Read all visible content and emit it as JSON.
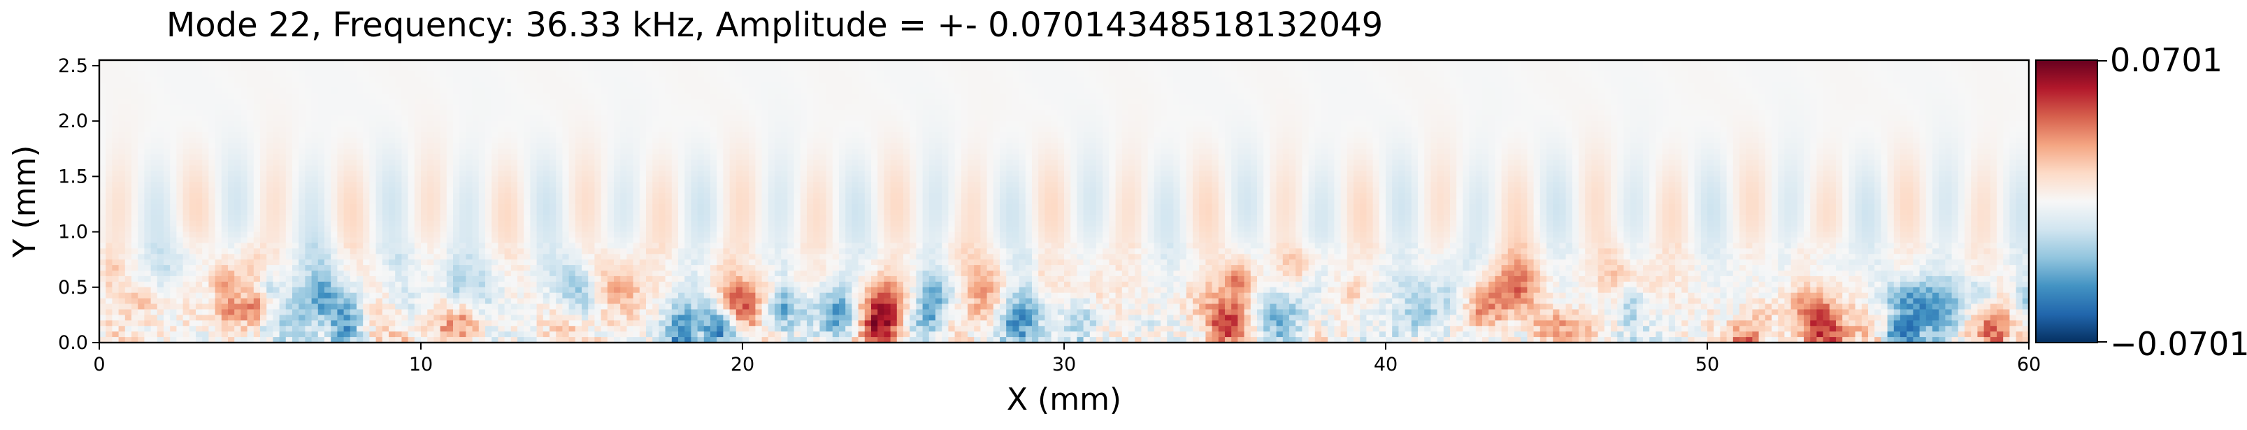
{
  "chart_data": {
    "type": "heatmap",
    "title": "Mode 22, Frequency: 36.33 kHz, Amplitude = +- 0.07014348518132049",
    "xlabel": "X (mm)",
    "ylabel": "Y (mm)",
    "xlim": [
      0,
      60
    ],
    "ylim": [
      0,
      2.55
    ],
    "x_ticks": [
      0,
      10,
      20,
      30,
      40,
      50,
      60
    ],
    "x_tick_labels": [
      "0",
      "10",
      "20",
      "30",
      "40",
      "50",
      "60"
    ],
    "y_ticks": [
      0.0,
      0.5,
      1.0,
      1.5,
      2.0,
      2.5
    ],
    "y_tick_labels": [
      "0.0",
      "0.5",
      "1.0",
      "1.5",
      "2.0",
      "2.5"
    ],
    "colormap": "RdBu_r",
    "colorbar": {
      "vmin": -0.0701,
      "vmax": 0.0701,
      "max_label": "0.0701",
      "min_label": "−0.0701"
    },
    "field_description": "Spatial mode shape: strong alternating positive/negative streaks near the wall (Y < 1 mm), fading to near zero above Y = 1.5 mm. Strongest positive patches near X≈20 and X≈24-25 mm, strongest negative patches near X≈19 and X≈26 mm."
  },
  "colors": {
    "positive_max": "#67001f",
    "zero": "#f7f7f7",
    "negative_max": "#053061"
  }
}
